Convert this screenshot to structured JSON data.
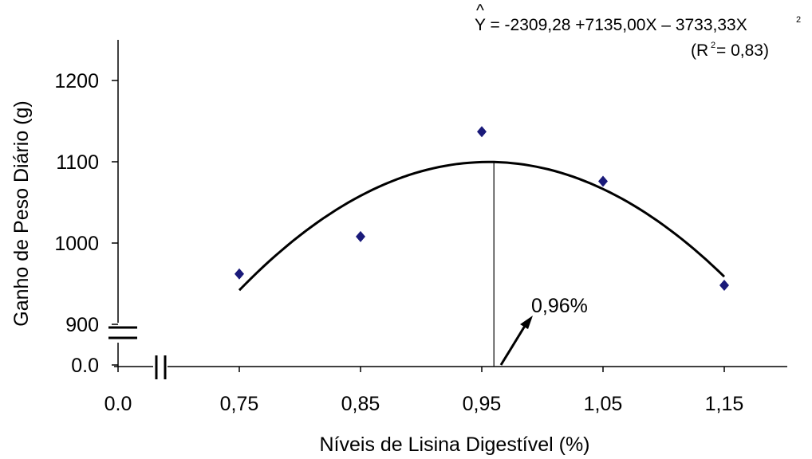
{
  "chart_data": {
    "type": "scatter",
    "xlabel": "Níveis de Lisina Digestível (%)",
    "ylabel": "Ganho de Peso Diário (g)",
    "x_ticks": [
      "0.0",
      "0,75",
      "0,85",
      "0,95",
      "1,05",
      "1,15"
    ],
    "y_ticks": [
      "0.0",
      "900",
      "1000",
      "1100",
      "1200"
    ],
    "xlim": [
      0.65,
      1.2
    ],
    "ylim": [
      850,
      1200
    ],
    "axis_breaks": [
      "x",
      "y"
    ],
    "grid": false,
    "series": [
      {
        "marker": "diamond",
        "color": "#1a1a7a",
        "x": [
          0.75,
          0.85,
          0.95,
          1.05,
          1.15
        ],
        "y": [
          962,
          1008,
          1137,
          1076,
          948
        ]
      }
    ],
    "fit_curve": {
      "coefficients": {
        "a": -2309.28,
        "b": 7135.0,
        "c": -3733.33
      },
      "x_range": [
        0.75,
        1.15
      ],
      "color": "#000000"
    },
    "equation": {
      "prefix": "Y = -2309,28 +7135,00X – 3733,33X",
      "exponent": "2",
      "r2_prefix": "(R",
      "r2_exponent": "2",
      "r2_suffix": " = 0,83)"
    },
    "optimum": {
      "x": 0.96,
      "label": "0,96%"
    }
  }
}
